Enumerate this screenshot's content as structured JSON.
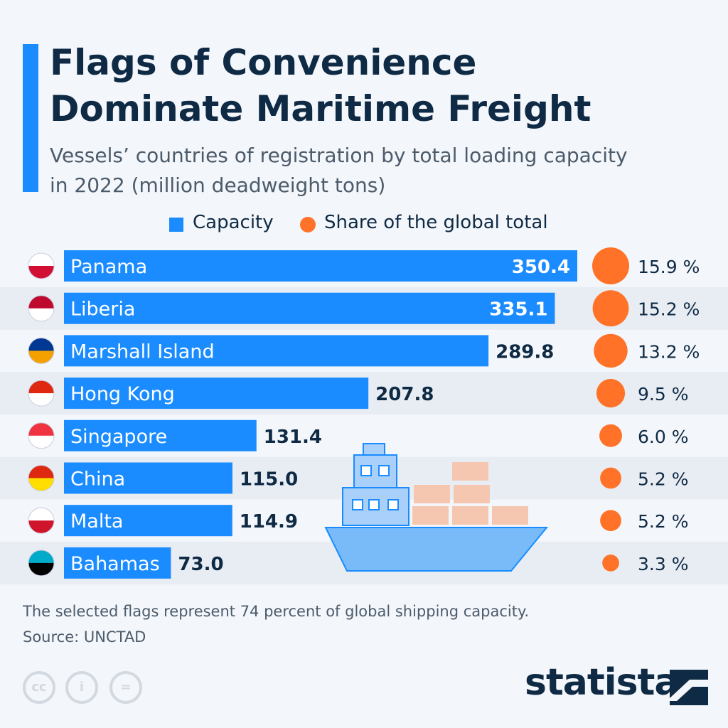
{
  "title_line1": "Flags of Convenience",
  "title_line2": "Dominate Maritime Freight",
  "subtitle_line1": "Vessels’ countries of registration by total loading capacity",
  "subtitle_line2": "in 2022 (million deadweight tons)",
  "footer_note": "The selected flags represent 74 percent of global shipping capacity.",
  "source": "Source: UNCTAD",
  "brand": "statista",
  "cc_labels": [
    "cc",
    "i",
    "="
  ],
  "colors": {
    "bar": "#1a8cff",
    "circle": "#ff7227",
    "title": "#0f2a44",
    "stripe": "#e8edf4"
  },
  "chart_data": {
    "type": "bar",
    "orientation": "horizontal",
    "legend": "top",
    "categories": [
      "Panama",
      "Liberia",
      "Marshall Island",
      "Hong Kong",
      "Singapore",
      "China",
      "Malta",
      "Bahamas"
    ],
    "series": [
      {
        "name": "Capacity",
        "values": [
          350.4,
          335.1,
          289.8,
          207.8,
          131.4,
          115.0,
          114.9,
          73.0
        ],
        "labels": [
          "350.4",
          "335.1",
          "289.8",
          "207.8",
          "131.4",
          "115.0",
          "114.9",
          "73.0"
        ]
      },
      {
        "name": "Share of the global total",
        "values": [
          15.9,
          15.2,
          13.2,
          9.5,
          6.0,
          5.2,
          5.2,
          3.3
        ],
        "labels": [
          "15.9 %",
          "15.2 %",
          "13.2 %",
          "9.5 %",
          "6.0 %",
          "5.2 %",
          "5.2 %",
          "3.3 %"
        ]
      }
    ],
    "flags": [
      "panama-flag",
      "liberia-flag",
      "marshall-islands-flag",
      "hong-kong-flag",
      "singapore-flag",
      "china-flag",
      "malta-flag",
      "bahamas-flag"
    ]
  }
}
